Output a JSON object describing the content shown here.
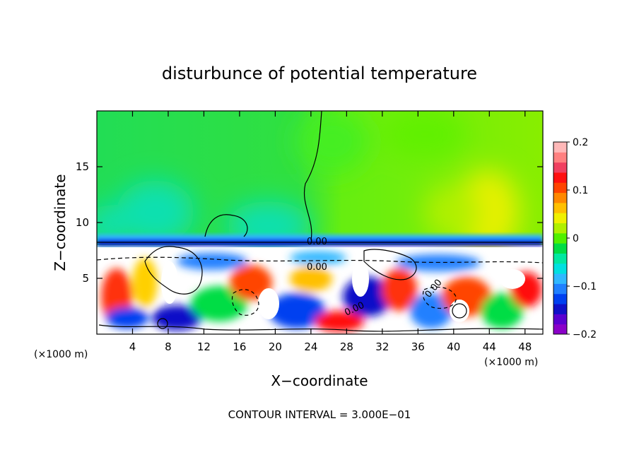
{
  "chart_data": {
    "type": "heatmap",
    "title": "disturbunce of potential temperature",
    "xlabel": "X−coordinate",
    "ylabel": "Z−coordinate",
    "x_unit_left": "(×1000 m)",
    "x_unit_right": "(×1000 m)",
    "xlim": [
      0,
      50
    ],
    "ylim": [
      0,
      20
    ],
    "x_ticks": [
      4,
      8,
      12,
      16,
      20,
      24,
      28,
      32,
      36,
      40,
      44,
      48
    ],
    "y_ticks": [
      5,
      10,
      15
    ],
    "colorbar": {
      "range": [
        -0.2,
        0.2
      ],
      "tick_values": [
        0.2,
        0.1,
        0,
        -0.1,
        -0.2
      ],
      "tick_labels": [
        "0.2",
        "0.1",
        "0",
        "−0.1",
        "−0.2"
      ],
      "colors": [
        "#8a00c8",
        "#5a00d0",
        "#1010c8",
        "#0040f0",
        "#2080ff",
        "#30b8ff",
        "#00e0e0",
        "#00e8a0",
        "#00dd44",
        "#50f000",
        "#b0f000",
        "#f0f000",
        "#ffc000",
        "#ff8800",
        "#ff4400",
        "#ff1010",
        "#f04060",
        "#ff8080",
        "#ffb8b8"
      ]
    },
    "contour_labels": [
      "0.00",
      "0.00",
      "0.00",
      "0.00"
    ],
    "footer": "CONTOUR INTERVAL = 3.000E−01"
  }
}
